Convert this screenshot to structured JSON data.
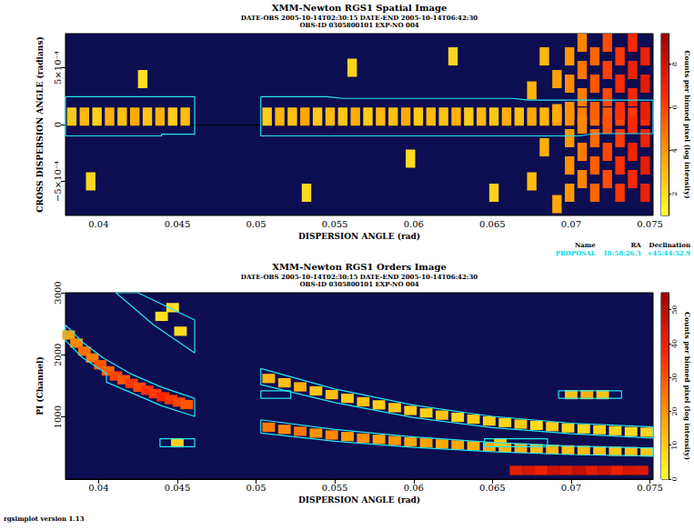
{
  "chart_data": [
    {
      "type": "heatmap",
      "title": "XMM-Newton RGS1 Spatial Image",
      "subtitle": [
        "DATE-OBS 2005-10-14T02:30:15 DATE-END 2005-10-14T06:42:30",
        "OBS-ID 0305800101 EXP-NO 004"
      ],
      "x_label": "DISPERSION ANGLE (rad)",
      "y_label": "CROSS DISPERSION ANGLE (radians)",
      "xlim": [
        0.0379,
        0.0752
      ],
      "xticks": [
        0.04,
        0.045,
        0.05,
        0.055,
        0.06,
        0.065,
        0.07,
        0.075
      ],
      "ylim": [
        -0.0008,
        0.0008
      ],
      "yticks": [
        {
          "value": -0.0005,
          "label": "−5×10⁻⁴"
        },
        0,
        {
          "value": 0.0005,
          "label": "5×10⁻⁴"
        }
      ],
      "cell_size": [
        0.0006,
        0.00016
      ],
      "cells": [
        [
          0.0383,
          7e-05,
          2.6
        ],
        [
          0.0391,
          7e-05,
          3.1
        ],
        [
          0.0399,
          7e-05,
          2.4
        ],
        [
          0.0407,
          7e-05,
          3.3
        ],
        [
          0.0415,
          7e-05,
          2.8
        ],
        [
          0.0423,
          7e-05,
          3.5
        ],
        [
          0.0431,
          7e-05,
          2.7
        ],
        [
          0.0439,
          7e-05,
          3.2
        ],
        [
          0.0447,
          7e-05,
          2.5
        ],
        [
          0.0455,
          7e-05,
          3.0
        ],
        [
          0.0507,
          7e-05,
          2.5
        ],
        [
          0.0515,
          7e-05,
          3.2
        ],
        [
          0.0523,
          7e-05,
          2.8
        ],
        [
          0.0531,
          7e-05,
          3.6
        ],
        [
          0.0539,
          7e-05,
          2.6
        ],
        [
          0.0547,
          7e-05,
          3.0
        ],
        [
          0.0555,
          7e-05,
          2.7
        ],
        [
          0.0563,
          7e-05,
          3.4
        ],
        [
          0.0571,
          7e-05,
          2.5
        ],
        [
          0.0579,
          7e-05,
          3.1
        ],
        [
          0.0587,
          7e-05,
          2.9
        ],
        [
          0.0595,
          7e-05,
          3.5
        ],
        [
          0.0603,
          7e-05,
          2.6
        ],
        [
          0.0611,
          7e-05,
          3.0
        ],
        [
          0.0619,
          7e-05,
          2.8
        ],
        [
          0.0627,
          7e-05,
          3.3
        ],
        [
          0.0635,
          7e-05,
          2.5
        ],
        [
          0.0643,
          7e-05,
          3.1
        ],
        [
          0.0651,
          7e-05,
          2.7
        ],
        [
          0.0659,
          7e-05,
          3.4
        ],
        [
          0.0667,
          7e-05,
          2.9
        ],
        [
          0.0675,
          7e-05,
          3.6
        ],
        [
          0.0683,
          7e-05,
          3.2
        ],
        [
          0.0691,
          7e-05,
          3.8
        ],
        [
          0.0699,
          7e-05,
          4.2
        ],
        [
          0.0707,
          7e-05,
          4.6
        ],
        [
          0.0715,
          7e-05,
          5.0
        ],
        [
          0.0723,
          7e-05,
          5.5
        ],
        [
          0.0731,
          7e-05,
          5.9
        ],
        [
          0.0739,
          7e-05,
          6.3
        ],
        [
          0.0747,
          7e-05,
          6.6
        ],
        [
          0.0395,
          -0.0005,
          2.2
        ],
        [
          0.0428,
          0.0004,
          2.0
        ],
        [
          0.0532,
          -0.0006,
          2.1
        ],
        [
          0.0561,
          0.0005,
          2.3
        ],
        [
          0.0598,
          -0.0003,
          2.0
        ],
        [
          0.0625,
          0.0006,
          2.2
        ],
        [
          0.0651,
          -0.0006,
          2.4
        ],
        [
          0.0675,
          -0.0005,
          3.0
        ],
        [
          0.0675,
          0.0003,
          3.2
        ],
        [
          0.0683,
          -0.0002,
          3.4
        ],
        [
          0.0683,
          0.0006,
          3.1
        ],
        [
          0.0691,
          -0.0007,
          3.6
        ],
        [
          0.0691,
          0.0001,
          3.5
        ],
        [
          0.0691,
          0.0004,
          3.8
        ],
        [
          0.0699,
          -0.0006,
          4.0
        ],
        [
          0.0699,
          -0.00036,
          4.2
        ],
        [
          0.0699,
          -0.00012,
          3.9
        ],
        [
          0.0699,
          0.00012,
          4.1
        ],
        [
          0.0699,
          0.00036,
          4.3
        ],
        [
          0.0699,
          0.0006,
          4.0
        ],
        [
          0.0707,
          -0.00048,
          4.5
        ],
        [
          0.0707,
          -0.00024,
          4.7
        ],
        [
          0.0707,
          0,
          4.4
        ],
        [
          0.0707,
          0.00024,
          4.6
        ],
        [
          0.0707,
          0.00048,
          4.8
        ],
        [
          0.0707,
          0.00072,
          4.5
        ],
        [
          0.0715,
          -0.0006,
          5.2
        ],
        [
          0.0715,
          -0.00036,
          5.4
        ],
        [
          0.0715,
          -0.00012,
          5.1
        ],
        [
          0.0715,
          0.00012,
          5.3
        ],
        [
          0.0715,
          0.00036,
          5.5
        ],
        [
          0.0715,
          0.0006,
          5.2
        ],
        [
          0.0723,
          -0.00048,
          5.8
        ],
        [
          0.0723,
          -0.00024,
          6.0
        ],
        [
          0.0723,
          0,
          5.7
        ],
        [
          0.0723,
          0.00024,
          5.9
        ],
        [
          0.0723,
          0.00048,
          6.1
        ],
        [
          0.0723,
          0.00072,
          5.8
        ],
        [
          0.0731,
          -0.0006,
          6.3
        ],
        [
          0.0731,
          -0.00036,
          6.5
        ],
        [
          0.0731,
          -0.00012,
          6.2
        ],
        [
          0.0731,
          0.00012,
          6.4
        ],
        [
          0.0731,
          0.00036,
          6.6
        ],
        [
          0.0731,
          0.0006,
          6.3
        ],
        [
          0.0739,
          -0.00048,
          6.8
        ],
        [
          0.0739,
          -0.00024,
          7.0
        ],
        [
          0.0739,
          0,
          6.7
        ],
        [
          0.0739,
          0.00024,
          6.9
        ],
        [
          0.0739,
          0.00048,
          7.1
        ],
        [
          0.0739,
          0.00072,
          6.8
        ],
        [
          0.0747,
          -0.0006,
          7.2
        ],
        [
          0.0747,
          -0.00036,
          7.4
        ],
        [
          0.0747,
          -0.00012,
          7.1
        ],
        [
          0.0747,
          0.00012,
          7.3
        ],
        [
          0.0747,
          0.00036,
          7.5
        ],
        [
          0.0747,
          0.0006,
          7.2
        ]
      ],
      "colorbar": {
        "label": "Counts per binned pixel (log intensity)",
        "range": [
          1,
          9.4
        ],
        "ticks": [
          2,
          4,
          6,
          8
        ]
      },
      "regions": {
        "color": "#27e6ef",
        "shapes": [
          {
            "x": [
              0.0379,
              0.0461,
              0.0461,
              0.044,
              0.044,
              0.0379
            ],
            "y": [
              0.000245,
              0.000245,
              -8.5e-05,
              -8.5e-05,
              -0.0001,
              -0.0001
            ]
          },
          {
            "x": [
              0.0503,
              0.0545,
              0.0555,
              0.0663,
              0.0673,
              0.0752,
              0.0752,
              0.0715,
              0.0705,
              0.0503
            ],
            "y": [
              0.000245,
              0.000245,
              0.00023,
              0.00023,
              0.000215,
              0.000215,
              -8e-05,
              -8e-05,
              -0.0001,
              -0.0001
            ]
          }
        ]
      },
      "source_table": {
        "header": [
          "Name",
          "RA",
          "Declination"
        ],
        "rows": [
          [
            "PROPOSAL",
            "18:58:26.3",
            "+45:44:52.9"
          ]
        ],
        "color": "#00d8e8"
      }
    },
    {
      "type": "heatmap",
      "title": "XMM-Newton RGS1 Orders Image",
      "subtitle": [
        "DATE-OBS 2005-10-14T02:30:15 DATE-END 2005-10-14T06:42:30",
        "OBS-ID 0305800101 EXP-NO 004"
      ],
      "x_label": "DISPERSION ANGLE (rad)",
      "y_label": "PI (Channel)",
      "xlim": [
        0.0379,
        0.0752
      ],
      "xticks": [
        0.04,
        0.045,
        0.05,
        0.055,
        0.06,
        0.065,
        0.07,
        0.075
      ],
      "ylim": [
        0,
        3000
      ],
      "yticks": [
        1000,
        2000,
        3000
      ],
      "cell_size": [
        0.0008,
        150
      ],
      "cells": [
        [
          0.0381,
          2320,
          18
        ],
        [
          0.0386,
          2190,
          22
        ],
        [
          0.0391,
          2060,
          26
        ],
        [
          0.0396,
          1950,
          24
        ],
        [
          0.0401,
          1840,
          30
        ],
        [
          0.0406,
          1740,
          28
        ],
        [
          0.0411,
          1660,
          33
        ],
        [
          0.0416,
          1600,
          30
        ],
        [
          0.0421,
          1540,
          35
        ],
        [
          0.0426,
          1480,
          32
        ],
        [
          0.0431,
          1430,
          36
        ],
        [
          0.0436,
          1375,
          34
        ],
        [
          0.0441,
          1325,
          38
        ],
        [
          0.0446,
          1280,
          35
        ],
        [
          0.0451,
          1240,
          33
        ],
        [
          0.0456,
          1200,
          30
        ],
        [
          0.044,
          2620,
          6
        ],
        [
          0.0452,
          2380,
          7
        ],
        [
          0.0447,
          2760,
          5
        ],
        [
          0.0508,
          1620,
          14
        ],
        [
          0.0518,
          1550,
          12
        ],
        [
          0.0528,
          1485,
          15
        ],
        [
          0.0538,
          1420,
          11
        ],
        [
          0.0548,
          1360,
          13
        ],
        [
          0.0558,
          1300,
          10
        ],
        [
          0.0568,
          1245,
          12
        ],
        [
          0.0578,
          1195,
          9
        ],
        [
          0.0588,
          1150,
          11
        ],
        [
          0.0598,
          1105,
          10
        ],
        [
          0.0608,
          1065,
          9
        ],
        [
          0.0618,
          1030,
          11
        ],
        [
          0.0628,
          995,
          8
        ],
        [
          0.0638,
          965,
          10
        ],
        [
          0.0648,
          935,
          9
        ],
        [
          0.0658,
          910,
          8
        ],
        [
          0.0668,
          885,
          10
        ],
        [
          0.0678,
          865,
          7
        ],
        [
          0.0688,
          845,
          9
        ],
        [
          0.0698,
          825,
          8
        ],
        [
          0.0708,
          810,
          7
        ],
        [
          0.0718,
          795,
          9
        ],
        [
          0.0728,
          780,
          8
        ],
        [
          0.0738,
          765,
          7
        ],
        [
          0.0748,
          755,
          8
        ],
        [
          0.0508,
          835,
          24
        ],
        [
          0.0518,
          800,
          22
        ],
        [
          0.0528,
          770,
          25
        ],
        [
          0.0538,
          740,
          20
        ],
        [
          0.0548,
          710,
          22
        ],
        [
          0.0558,
          685,
          19
        ],
        [
          0.0568,
          660,
          21
        ],
        [
          0.0578,
          640,
          18
        ],
        [
          0.0588,
          620,
          20
        ],
        [
          0.0598,
          600,
          17
        ],
        [
          0.0608,
          582,
          18
        ],
        [
          0.0618,
          566,
          16
        ],
        [
          0.0628,
          550,
          17
        ],
        [
          0.0638,
          536,
          15
        ],
        [
          0.0648,
          522,
          16
        ],
        [
          0.0658,
          510,
          14
        ],
        [
          0.0668,
          498,
          15
        ],
        [
          0.0678,
          488,
          13
        ],
        [
          0.0688,
          478,
          14
        ],
        [
          0.0698,
          470,
          12
        ],
        [
          0.0708,
          462,
          13
        ],
        [
          0.0718,
          455,
          12
        ],
        [
          0.0728,
          448,
          11
        ],
        [
          0.0738,
          442,
          12
        ],
        [
          0.0748,
          437,
          10
        ],
        [
          0.07,
          1360,
          12
        ],
        [
          0.071,
          1360,
          15
        ],
        [
          0.072,
          1360,
          11
        ],
        [
          0.045,
          585,
          9
        ],
        [
          0.0655,
          585,
          10
        ],
        [
          0.0665,
          140,
          42
        ],
        [
          0.0673,
          140,
          45
        ],
        [
          0.0681,
          140,
          40
        ],
        [
          0.0689,
          140,
          47
        ],
        [
          0.0697,
          140,
          44
        ],
        [
          0.0705,
          140,
          48
        ],
        [
          0.0713,
          140,
          43
        ],
        [
          0.0721,
          140,
          46
        ],
        [
          0.0729,
          140,
          41
        ],
        [
          0.0737,
          140,
          45
        ],
        [
          0.0745,
          140,
          44
        ]
      ],
      "colorbar": {
        "label": "Counts per binned pixel (log intensity)",
        "range": [
          0,
          55
        ],
        "ticks": [
          0,
          10,
          20,
          30,
          40,
          50
        ]
      },
      "regions": {
        "color": "#27e6ef",
        "shapes": [
          {
            "x": [
              0.0379,
              0.039,
              0.0403,
              0.042,
              0.044,
              0.0461,
              0.0461,
              0.044,
              0.042,
              0.0405,
              0.0405,
              0.039,
              0.0379
            ],
            "y": [
              2480,
              2200,
              1950,
              1700,
              1480,
              1300,
              1010,
              1180,
              1400,
              1560,
              1700,
              1950,
              2230
            ]
          },
          {
            "x": [
              0.0425,
              0.0443,
              0.0461,
              0.0461,
              0.0435,
              0.0411
            ],
            "y": [
              3000,
              2780,
              2560,
              2030,
              2480,
              3000
            ]
          },
          {
            "x": [
              0.0439,
              0.0461,
              0.0461,
              0.0439
            ],
            "y": [
              520,
              520,
              650,
              650
            ]
          },
          {
            "x": [
              0.0503,
              0.055,
              0.06,
              0.065,
              0.07,
              0.0752,
              0.0752,
              0.07,
              0.065,
              0.06,
              0.055,
              0.0503
            ],
            "y": [
              1780,
              1450,
              1190,
              1010,
              900,
              840,
              660,
              730,
              830,
              990,
              1230,
              1520
            ]
          },
          {
            "x": [
              0.0503,
              0.055,
              0.06,
              0.065,
              0.07,
              0.0752,
              0.0752,
              0.07,
              0.065,
              0.06,
              0.055,
              0.0503
            ],
            "y": [
              955,
              800,
              680,
              590,
              530,
              500,
              370,
              395,
              440,
              510,
              610,
              740
            ]
          },
          {
            "x": [
              0.0503,
              0.0522,
              0.0522,
              0.0503
            ],
            "y": [
              1300,
              1300,
              1420,
              1420
            ]
          },
          {
            "x": [
              0.0645,
              0.0685,
              0.0685,
              0.0645
            ],
            "y": [
              520,
              520,
              650,
              650
            ]
          },
          {
            "x": [
              0.0692,
              0.0732,
              0.0732,
              0.0692
            ],
            "y": [
              1300,
              1300,
              1420,
              1420
            ]
          }
        ]
      }
    }
  ],
  "footer": "rgsimplot version 1.13"
}
